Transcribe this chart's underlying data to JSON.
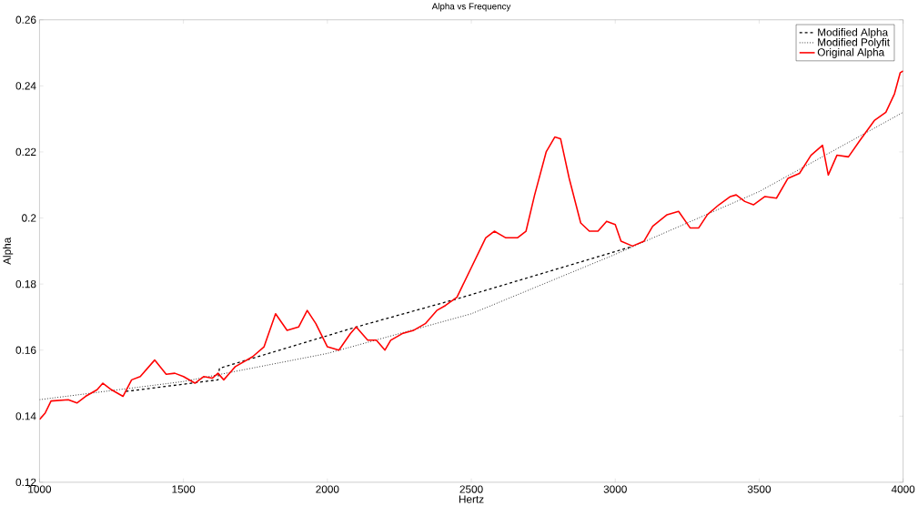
{
  "chart_data": {
    "type": "line",
    "title": "Alpha vs Frequency",
    "xlabel": "Hertz",
    "ylabel": "Alpha",
    "xlim": [
      1000,
      4000
    ],
    "xticks": [
      1000,
      1500,
      2000,
      2500,
      3000,
      3500,
      4000
    ],
    "ylim": [
      0.12,
      0.26
    ],
    "yticks": [
      0.12,
      0.14,
      0.16,
      0.18,
      0.2,
      0.22,
      0.24,
      0.26
    ],
    "grid": false,
    "legend": "top right",
    "series": [
      {
        "name": "Modified Alpha",
        "color": "#000000",
        "line_style": "dashed",
        "x": [
          1300,
          1620,
          1625,
          2100,
          2450,
          3060
        ],
        "values": [
          0.1475,
          0.151,
          0.1545,
          0.167,
          0.1755,
          0.1914
        ]
      },
      {
        "name": "Modified Polyfit",
        "color": "#000000",
        "line_style": "dotted",
        "x": [
          1000,
          1500,
          2000,
          2500,
          3000,
          3500,
          4000
        ],
        "values": [
          0.145,
          0.1505,
          0.159,
          0.171,
          0.189,
          0.208,
          0.232
        ]
      },
      {
        "name": "Original Alpha",
        "color": "#ff0000",
        "line_style": "solid",
        "x": [
          1000,
          1020,
          1040,
          1100,
          1130,
          1160,
          1200,
          1220,
          1250,
          1290,
          1320,
          1350,
          1400,
          1440,
          1470,
          1500,
          1540,
          1570,
          1600,
          1620,
          1640,
          1680,
          1740,
          1780,
          1820,
          1860,
          1900,
          1930,
          1960,
          2000,
          2040,
          2080,
          2100,
          2140,
          2170,
          2200,
          2220,
          2260,
          2300,
          2340,
          2380,
          2410,
          2450,
          2500,
          2550,
          2580,
          2620,
          2660,
          2690,
          2720,
          2760,
          2790,
          2810,
          2840,
          2880,
          2910,
          2940,
          2970,
          3000,
          3020,
          3060,
          3100,
          3130,
          3180,
          3220,
          3260,
          3290,
          3320,
          3360,
          3400,
          3420,
          3450,
          3480,
          3520,
          3560,
          3600,
          3640,
          3680,
          3720,
          3740,
          3770,
          3810,
          3850,
          3900,
          3940,
          3970,
          3990,
          4000
        ],
        "values": [
          0.139,
          0.141,
          0.1446,
          0.145,
          0.144,
          0.146,
          0.148,
          0.15,
          0.148,
          0.146,
          0.151,
          0.152,
          0.157,
          0.1527,
          0.153,
          0.152,
          0.15,
          0.152,
          0.1515,
          0.153,
          0.151,
          0.155,
          0.158,
          0.161,
          0.171,
          0.166,
          0.167,
          0.172,
          0.168,
          0.161,
          0.16,
          0.165,
          0.167,
          0.163,
          0.163,
          0.16,
          0.163,
          0.165,
          0.166,
          0.168,
          0.172,
          0.1735,
          0.176,
          0.185,
          0.194,
          0.196,
          0.194,
          0.194,
          0.196,
          0.207,
          0.22,
          0.2245,
          0.224,
          0.212,
          0.1985,
          0.196,
          0.196,
          0.199,
          0.198,
          0.193,
          0.1915,
          0.193,
          0.1975,
          0.201,
          0.202,
          0.197,
          0.197,
          0.201,
          0.204,
          0.2065,
          0.207,
          0.205,
          0.204,
          0.2065,
          0.206,
          0.212,
          0.2135,
          0.219,
          0.222,
          0.213,
          0.219,
          0.2185,
          0.2235,
          0.2295,
          0.232,
          0.2376,
          0.244,
          0.2445
        ]
      }
    ]
  }
}
